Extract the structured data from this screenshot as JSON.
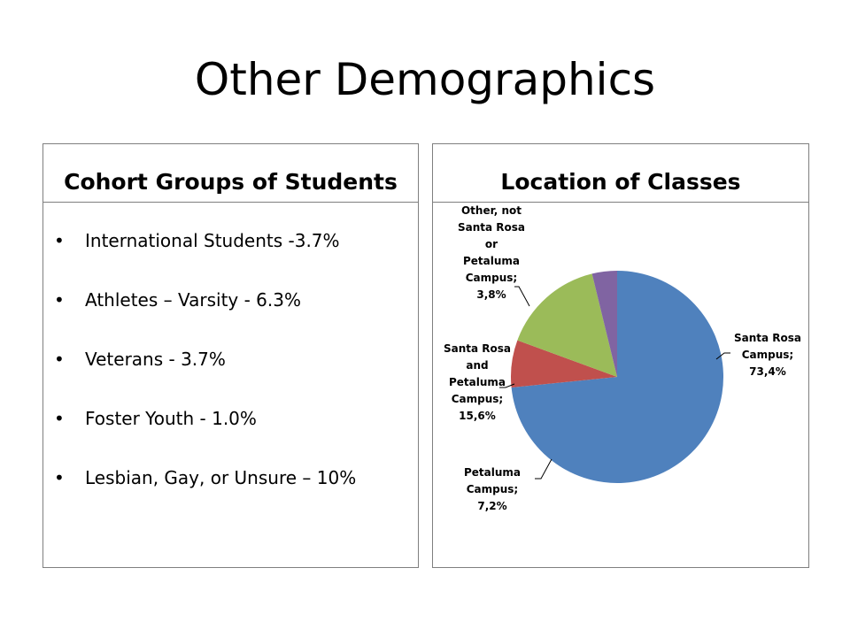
{
  "slide": {
    "title": "Other Demographics"
  },
  "cohort_panel": {
    "title": "Cohort Groups of Students",
    "items": [
      "International Students -3.7%",
      "Athletes – Varsity - 6.3%",
      "Veterans - 3.7%",
      "Foster Youth  - 1.0%",
      "Lesbian, Gay, or Unsure – 10%"
    ]
  },
  "chart_data": {
    "type": "pie",
    "title": "Location of Classes",
    "slices": [
      {
        "label": "Santa Rosa Campus",
        "value": 73.4,
        "display": "73,4%",
        "color": "#4F81BD",
        "label_lines": [
          "Santa Rosa",
          "Campus;",
          "73,4%"
        ]
      },
      {
        "label": "Petaluma Campus",
        "value": 7.2,
        "display": "7,2%",
        "color": "#C0504D",
        "label_lines": [
          "Petaluma",
          "Campus;",
          "7,2%"
        ]
      },
      {
        "label": "Santa Rosa and Petaluma Campus",
        "value": 15.6,
        "display": "15,6%",
        "color": "#9BBB59",
        "label_lines": [
          "Santa Rosa",
          "and",
          "Petaluma",
          "Campus;",
          "15,6%"
        ]
      },
      {
        "label": "Other, not Santa Rosa or Petaluma Campus",
        "value": 3.8,
        "display": "3,8%",
        "color": "#8064A2",
        "label_lines": [
          "Other, not",
          "Santa Rosa",
          "or",
          "Petaluma",
          "Campus;",
          "3,8%"
        ]
      }
    ],
    "legend": "none"
  }
}
